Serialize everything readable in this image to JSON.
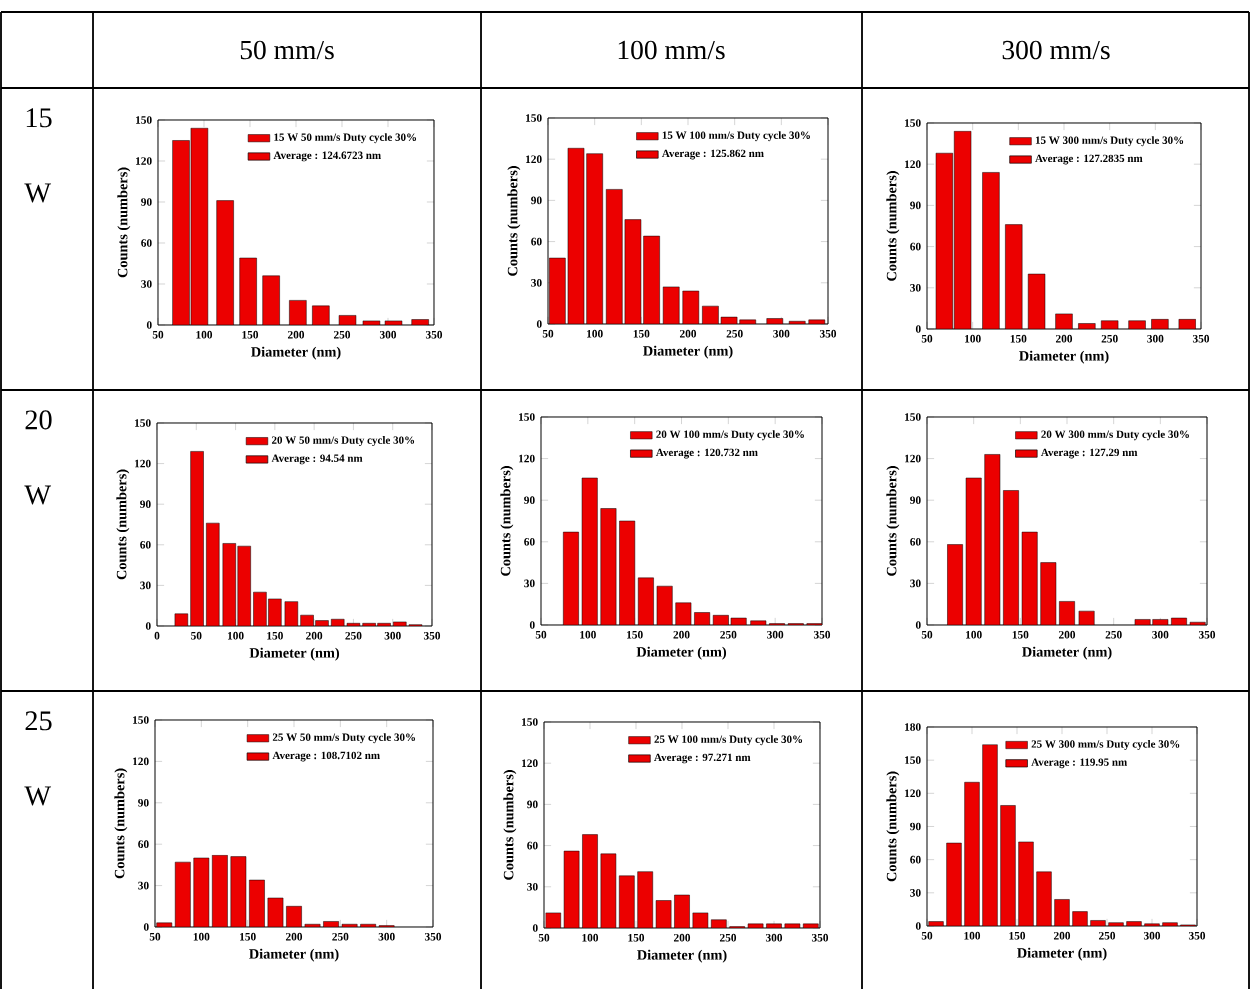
{
  "chart_data": [
    {
      "type": "bar",
      "title": "50 mm/s",
      "xlabel": "Diameter (nm)",
      "ylabel": "Counts (numbers)",
      "legend": "top right",
      "annotations": [
        "Average : 124.6723 nm",
        "15 W"
      ],
      "xlim": [
        50,
        350
      ],
      "xticks": [
        50,
        100,
        150,
        200,
        250,
        300,
        350
      ],
      "ylim": [
        0,
        150
      ],
      "yticks": [
        0,
        30,
        60,
        90,
        120,
        150
      ],
      "x": [
        75,
        95,
        123,
        148,
        173,
        202,
        227,
        256,
        282,
        306,
        335
      ],
      "series": [
        {
          "name": "15 W 50 mm/s Duty cycle 30%",
          "color": "#ec0000",
          "values": [
            135,
            144,
            91,
            49,
            36,
            18,
            14,
            7,
            3,
            3,
            4
          ]
        }
      ]
    },
    {
      "type": "bar",
      "title": "100 mm/s",
      "xlabel": "Diameter (nm)",
      "ylabel": "Counts (numbers)",
      "legend": "top right",
      "annotations": [
        "Average : 125.862 nm"
      ],
      "xlim": [
        50,
        350
      ],
      "xticks": [
        50,
        100,
        150,
        200,
        250,
        300,
        350
      ],
      "ylim": [
        0,
        150
      ],
      "yticks": [
        0,
        30,
        60,
        90,
        120,
        150
      ],
      "x": [
        60,
        80,
        100,
        121,
        141,
        161,
        182,
        203,
        224,
        244,
        264,
        293,
        317,
        338
      ],
      "series": [
        {
          "name": "15 W 100 mm/s Duty cycle 30%",
          "color": "#ec0000",
          "values": [
            48,
            128,
            124,
            98,
            76,
            64,
            27,
            24,
            13,
            5,
            3,
            4,
            2,
            3
          ]
        }
      ]
    },
    {
      "type": "bar",
      "title": "300 mm/s",
      "xlabel": "Diameter (nm)",
      "ylabel": "Counts (numbers)",
      "legend": "top right",
      "annotations": [
        "Average : 127.2835 nm"
      ],
      "xlim": [
        50,
        350
      ],
      "xticks": [
        50,
        100,
        150,
        200,
        250,
        300,
        350
      ],
      "ylim": [
        0,
        150
      ],
      "yticks": [
        0,
        30,
        60,
        90,
        120,
        150
      ],
      "x": [
        69,
        89,
        120,
        145,
        170,
        200,
        225,
        250,
        280,
        305,
        335
      ],
      "series": [
        {
          "name": "15 W 300 mm/s Duty cycle 30%",
          "color": "#ec0000",
          "values": [
            128,
            144,
            114,
            76,
            40,
            11,
            4,
            6,
            6,
            7,
            7
          ]
        }
      ]
    },
    {
      "type": "bar",
      "xlabel": "Diameter (nm)",
      "ylabel": "Counts (numbers)",
      "legend": "top right",
      "annotations": [
        "Average : 94.54 nm",
        "20 W"
      ],
      "xlim": [
        0,
        350
      ],
      "xticks": [
        0,
        50,
        100,
        150,
        200,
        250,
        300,
        350
      ],
      "ylim": [
        0,
        150
      ],
      "yticks": [
        0,
        30,
        60,
        90,
        120,
        150
      ],
      "x": [
        31,
        51,
        71,
        92,
        111,
        131,
        150,
        171,
        191,
        210,
        230,
        250,
        270,
        289,
        309,
        329
      ],
      "series": [
        {
          "name": "20 W 50 mm/s Duty cycle 30%",
          "color": "#ec0000",
          "values": [
            9,
            129,
            76,
            61,
            59,
            25,
            20,
            18,
            8,
            4,
            5,
            2,
            2,
            2,
            3,
            1
          ]
        }
      ]
    },
    {
      "type": "bar",
      "xlabel": "Diameter (nm)",
      "ylabel": "Counts (numbers)",
      "legend": "top right",
      "annotations": [
        "Average : 120.732 nm"
      ],
      "xlim": [
        50,
        350
      ],
      "xticks": [
        50,
        100,
        150,
        200,
        250,
        300,
        350
      ],
      "ylim": [
        0,
        150
      ],
      "yticks": [
        0,
        30,
        60,
        90,
        120,
        150
      ],
      "x": [
        82,
        102,
        122,
        142,
        162,
        182,
        202,
        222,
        242,
        261,
        282,
        302,
        322,
        342
      ],
      "series": [
        {
          "name": "20 W 100 mm/s Duty cycle 30%",
          "color": "#ec0000",
          "values": [
            67,
            106,
            84,
            75,
            34,
            28,
            16,
            9,
            7,
            5,
            3,
            1,
            1,
            1
          ]
        }
      ]
    },
    {
      "type": "bar",
      "xlabel": "Diameter (nm)",
      "ylabel": "Counts (numbers)",
      "legend": "top right",
      "annotations": [
        "Average : 127.29 nm"
      ],
      "xlim": [
        50,
        350
      ],
      "xticks": [
        50,
        100,
        150,
        200,
        250,
        300,
        350
      ],
      "ylim": [
        0,
        150
      ],
      "yticks": [
        0,
        30,
        60,
        90,
        120,
        150
      ],
      "x": [
        80,
        100,
        120,
        140,
        160,
        180,
        200,
        221,
        281,
        300,
        320,
        340
      ],
      "series": [
        {
          "name": "20 W 300 mm/s Duty cycle 30%",
          "color": "#ec0000",
          "values": [
            58,
            106,
            123,
            97,
            67,
            45,
            17,
            10,
            4,
            4,
            5,
            2
          ]
        }
      ]
    },
    {
      "type": "bar",
      "xlabel": "Diameter (nm)",
      "ylabel": "Counts (numbers)",
      "legend": "top right",
      "annotations": [
        "Average : 108.7102 nm",
        "25 W"
      ],
      "xlim": [
        50,
        350
      ],
      "xticks": [
        50,
        100,
        150,
        200,
        250,
        300,
        350
      ],
      "ylim": [
        0,
        150
      ],
      "yticks": [
        0,
        30,
        60,
        90,
        120,
        150
      ],
      "x": [
        60,
        80,
        100,
        120,
        140,
        160,
        180,
        200,
        220,
        240,
        260,
        280,
        300
      ],
      "series": [
        {
          "name": "25 W 50 mm/s Duty cycle 30%",
          "color": "#ec0000",
          "values": [
            3,
            47,
            50,
            52,
            51,
            34,
            21,
            15,
            2,
            4,
            2,
            2,
            1
          ]
        }
      ]
    },
    {
      "type": "bar",
      "xlabel": "Diameter (nm)",
      "ylabel": "Counts (numbers)",
      "legend": "top right",
      "annotations": [
        "Average : 97.271 nm"
      ],
      "xlim": [
        50,
        350
      ],
      "xticks": [
        50,
        100,
        150,
        200,
        250,
        300,
        350
      ],
      "ylim": [
        0,
        150
      ],
      "yticks": [
        0,
        30,
        60,
        90,
        120,
        150
      ],
      "x": [
        60,
        80,
        100,
        120,
        140,
        160,
        180,
        200,
        220,
        240,
        260,
        280,
        300,
        320,
        340
      ],
      "series": [
        {
          "name": "25 W 100 mm/s Duty cycle 30%",
          "color": "#ec0000",
          "values": [
            11,
            56,
            68,
            54,
            38,
            41,
            20,
            24,
            11,
            6,
            1,
            3,
            3,
            3,
            3
          ]
        }
      ]
    },
    {
      "type": "bar",
      "xlabel": "Diameter (nm)",
      "ylabel": "Counts (numbers)",
      "legend": "top right",
      "annotations": [
        "Average : 119.95 nm"
      ],
      "xlim": [
        50,
        350
      ],
      "xticks": [
        50,
        100,
        150,
        200,
        250,
        300,
        350
      ],
      "ylim": [
        0,
        180
      ],
      "yticks": [
        0,
        30,
        60,
        90,
        120,
        150,
        180
      ],
      "x": [
        60,
        80,
        100,
        120,
        140,
        160,
        180,
        200,
        220,
        240,
        260,
        280,
        300,
        320,
        340
      ],
      "series": [
        {
          "name": "25 W 300 mm/s Duty cycle 30%",
          "color": "#ec0000",
          "values": [
            4,
            75,
            130,
            164,
            109,
            76,
            49,
            24,
            13,
            5,
            3,
            4,
            2,
            3,
            1
          ]
        }
      ]
    }
  ]
}
